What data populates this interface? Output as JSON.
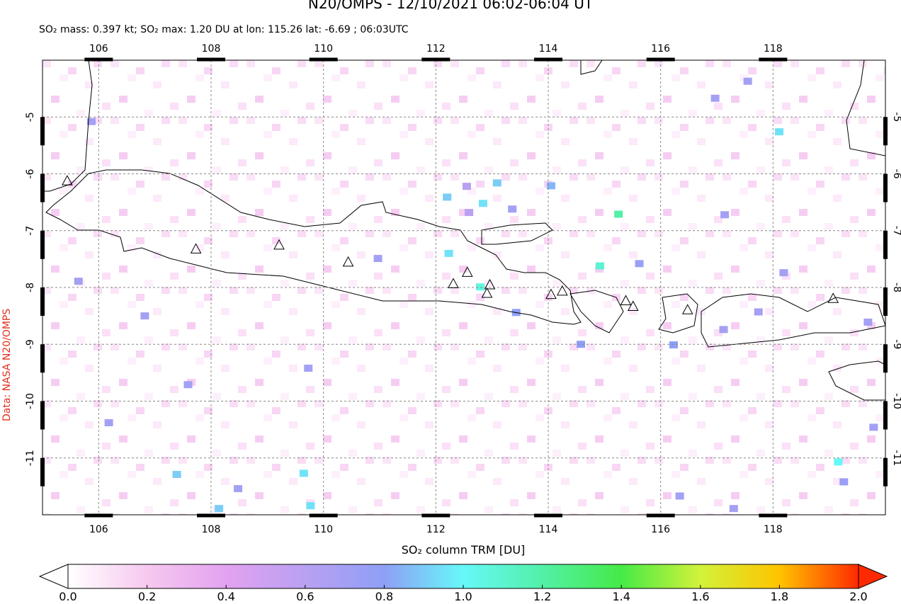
{
  "chart_data": {
    "type": "map",
    "title": "N20/OMPS - 12/10/2021 06:02-06:04 UT",
    "subtitle": "SO₂ mass: 0.397 kt; SO₂ max: 1.20 DU at lon: 115.26 lat: -6.69 ; 06:03UTC",
    "credit": "Data: NASA N20/OMPS",
    "colorbar_label": "SO₂ column TRM [DU]",
    "xlim": [
      105,
      120
    ],
    "ylim": [
      -12,
      -4
    ],
    "xticks": [
      106,
      108,
      110,
      112,
      114,
      116,
      118
    ],
    "yticks": [
      -5,
      -6,
      -7,
      -8,
      -9,
      -10,
      -11
    ],
    "grid": true,
    "colorbar": {
      "lim": [
        0,
        2
      ],
      "ticks": [
        {
          "value": 0,
          "label": "0.0"
        },
        {
          "value": 0.2,
          "label": "0.2"
        },
        {
          "value": 0.4,
          "label": "0.4"
        },
        {
          "value": 0.6,
          "label": "0.6"
        },
        {
          "value": 0.8,
          "label": "0.8"
        },
        {
          "value": 1,
          "label": "1.0"
        },
        {
          "value": 1.2,
          "label": "1.2"
        },
        {
          "value": 1.4,
          "label": "1.4"
        },
        {
          "value": 1.6,
          "label": "1.6"
        },
        {
          "value": 1.8,
          "label": "1.8"
        },
        {
          "value": 2,
          "label": "2.0"
        }
      ],
      "colors": [
        "#ffffff",
        "#f6c9ef",
        "#e2a2f0",
        "#b9a0f2",
        "#8f9ff6",
        "#66f8f8",
        "#52f0a8",
        "#46ea46",
        "#d2f23a",
        "#ffc400",
        "#ff2a00"
      ]
    },
    "pixels": {
      "lon": [
        115.25,
        114.92,
        118.11,
        119.16,
        112.84,
        112.2,
        113.09,
        114.05,
        112.23,
        112.79,
        109.65,
        109.77,
        108.14,
        107.39,
        105.87,
        107.59,
        106.18,
        117.55,
        117.12,
        116.23,
        114.58,
        119.26,
        119.79,
        115.62,
        118.19,
        117.74,
        112.59,
        112.55,
        113.36,
        110.97,
        106.82,
        105.64,
        108.48,
        116.34,
        117.3,
        113.43,
        109.73,
        119.69,
        116.97,
        117.14
      ],
      "lat": [
        -6.71,
        -7.62,
        -5.26,
        -11.07,
        -6.52,
        -6.41,
        -6.16,
        -6.21,
        -7.4,
        -7.99,
        -11.27,
        -11.84,
        -11.89,
        -11.29,
        -5.08,
        -9.71,
        -10.38,
        -4.37,
        -8.74,
        -9.01,
        -9.0,
        -11.42,
        -10.46,
        -7.58,
        -7.74,
        -8.43,
        -6.68,
        -6.22,
        -6.62,
        -7.49,
        -8.5,
        -7.89,
        -11.54,
        -11.67,
        -11.89,
        -8.44,
        -9.42,
        -8.61,
        -4.67,
        -6.72
      ],
      "values": [
        1.2,
        1.1,
        0.95,
        1.0,
        0.95,
        0.9,
        0.9,
        0.85,
        0.95,
        1.05,
        0.95,
        0.95,
        0.9,
        0.9,
        0.7,
        0.7,
        0.7,
        0.7,
        0.7,
        0.8,
        0.8,
        0.75,
        0.7,
        0.75,
        0.7,
        0.7,
        0.6,
        0.6,
        0.7,
        0.7,
        0.7,
        0.7,
        0.7,
        0.7,
        0.7,
        0.8,
        0.7,
        0.7,
        0.7,
        0.7
      ]
    },
    "volcanoes": {
      "lon": [
        107.73,
        109.21,
        110.44,
        112.31,
        112.56,
        112.96,
        112.91,
        114.05,
        114.25,
        115.38,
        115.51,
        116.48,
        119.07,
        105.44
      ],
      "lat": [
        -7.32,
        -7.25,
        -7.55,
        -7.93,
        -7.73,
        -7.95,
        -8.1,
        -8.12,
        -8.06,
        -8.23,
        -8.33,
        -8.39,
        -8.19,
        -6.12
      ]
    }
  }
}
